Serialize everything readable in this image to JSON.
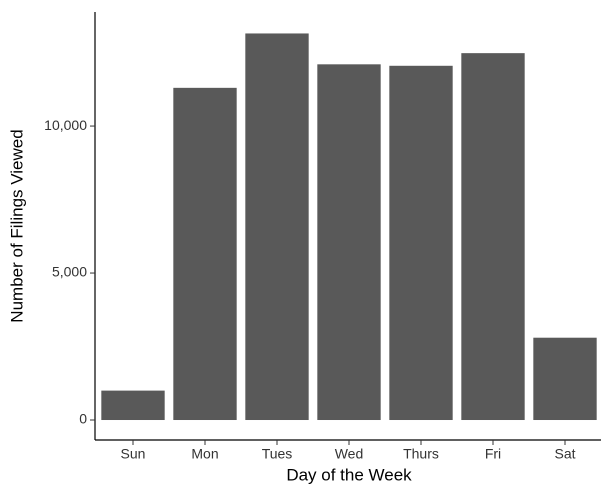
{
  "chart_data": {
    "type": "bar",
    "x_label": "Day of the Week",
    "y_label": "Number of Filings Viewed",
    "categories": [
      "Sun",
      "Mon",
      "Tues",
      "Wed",
      "Thurs",
      "Fri",
      "Sat"
    ],
    "values": [
      1000,
      11300,
      13150,
      12100,
      12050,
      12480,
      2800
    ],
    "color": "#595959",
    "ylim": [
      -680,
      13880
    ],
    "yticks": [
      0,
      {
        "value": 5000,
        "label": "5,000"
      },
      {
        "value": 10000,
        "label": "10,000"
      }
    ],
    "grid": false
  }
}
